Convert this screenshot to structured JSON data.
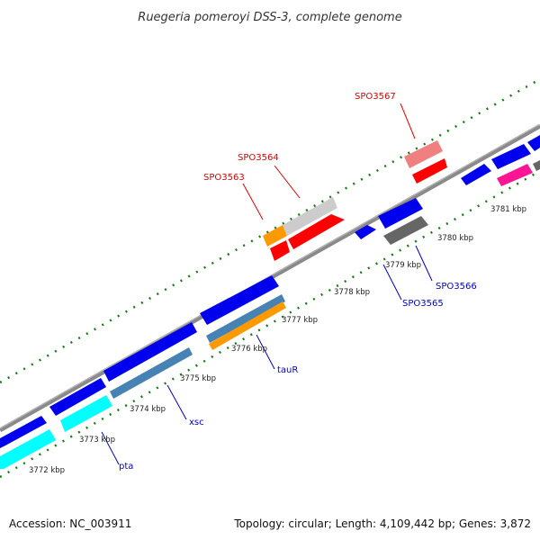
{
  "title": "Ruegeria pomeroyi DSS-3, complete genome",
  "footer": {
    "accession": "Accession: NC_003911",
    "stats": "Topology: circular; Length: 4,109,442 bp; Genes: 3,872"
  },
  "ticks": [
    "3772 kbp",
    "3773 kbp",
    "3774 kbp",
    "3775 kbp",
    "3776 kbp",
    "3777 kbp",
    "3778 kbp",
    "3779 kbp",
    "3780 kbp",
    "3781 kbp"
  ],
  "gene_labels": {
    "spo3567": "SPO3567",
    "spo3564": "SPO3564",
    "spo3563": "SPO3563",
    "spo3566": "SPO3566",
    "spo3565": "SPO3565",
    "taur": "tauR",
    "xsc": "xsc",
    "pta": "pta"
  },
  "colors": {
    "forward_cds": "#0000ee",
    "highlight_red": "#ff0000",
    "label_red": "#dd0000",
    "label_blue": "#0000cc",
    "backbone": "#808080",
    "tick_green": "#1a7a1a"
  }
}
